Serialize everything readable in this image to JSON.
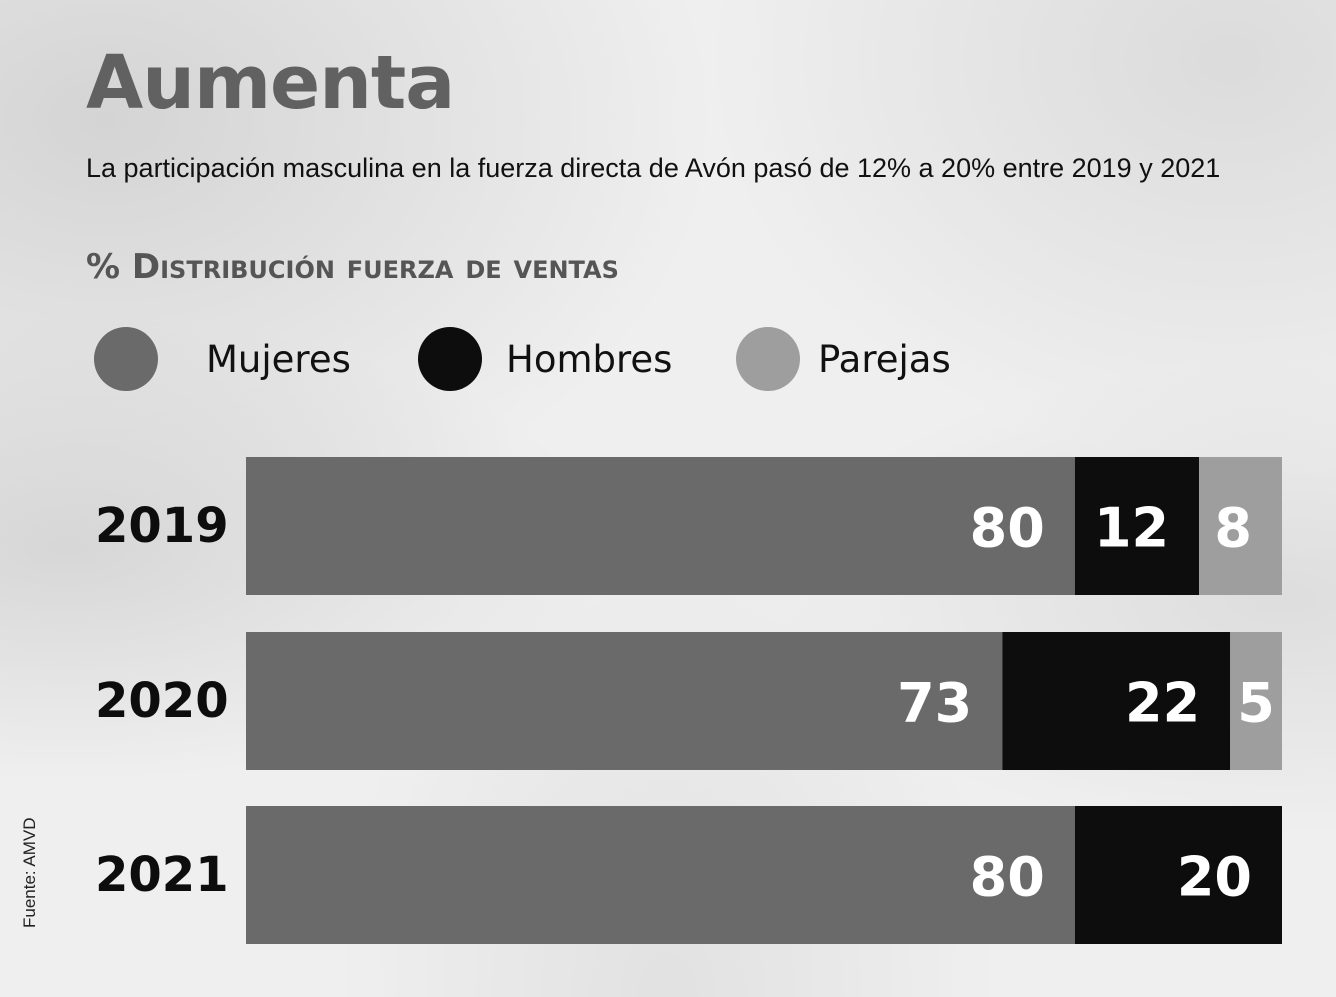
{
  "title": "Aumenta",
  "subtitle": "La participación masculina en la fuerza directa de Avón pasó de 12% a 20% entre 2019 y 2021",
  "source": "Fuente: AMVD",
  "chart_data": {
    "type": "bar",
    "orientation": "horizontal",
    "stacked": true,
    "title": "% Distribución fuerza de ventas",
    "categories": [
      "2019",
      "2020",
      "2021"
    ],
    "series": [
      {
        "name": "Mujeres",
        "color": "#6a6a6a",
        "values": [
          80,
          73,
          80
        ]
      },
      {
        "name": "Hombres",
        "color": "#0d0d0d",
        "values": [
          12,
          22,
          20
        ]
      },
      {
        "name": "Parejas",
        "color": "#9e9e9e",
        "values": [
          8,
          5,
          0
        ]
      }
    ],
    "xlim": [
      0,
      100
    ],
    "grid": false,
    "legend": "top"
  }
}
